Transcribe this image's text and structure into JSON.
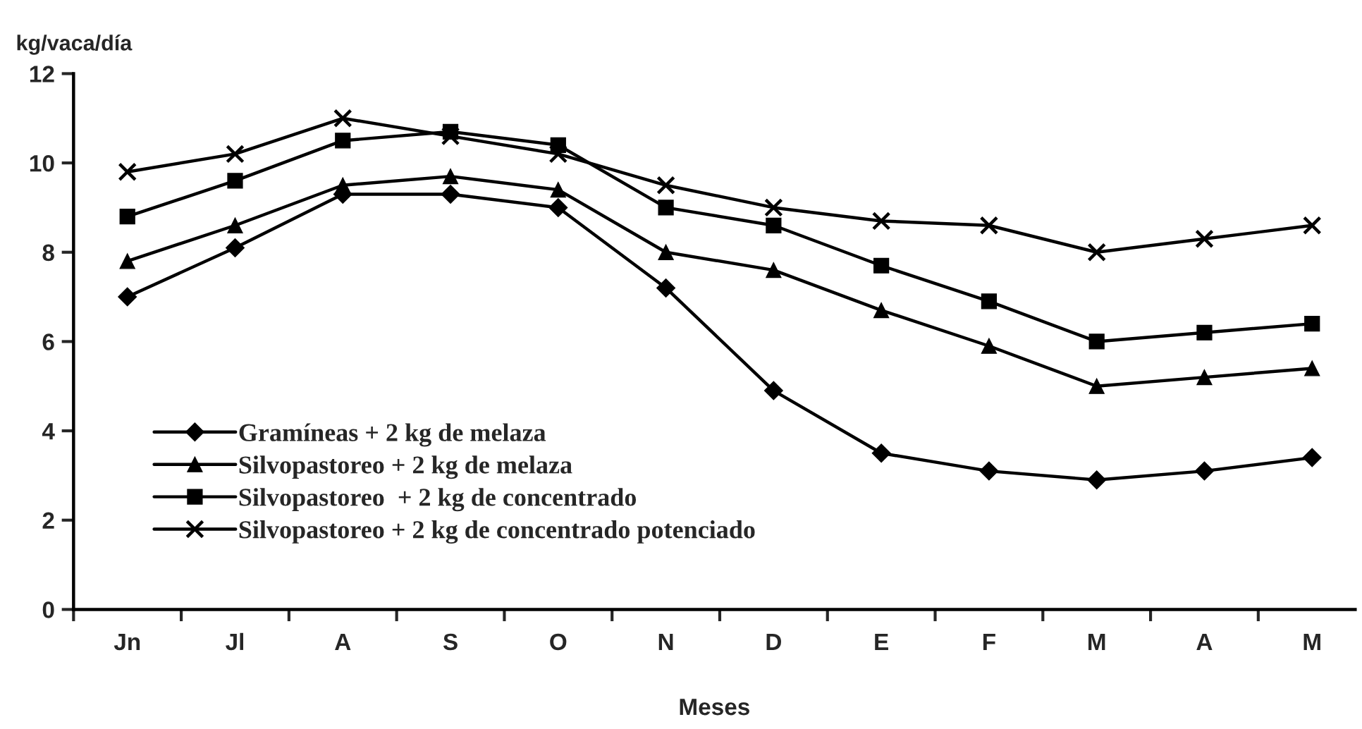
{
  "chart_data": {
    "type": "line",
    "ylabel": "kg/vaca/día",
    "xlabel": "Meses",
    "categories": [
      "Jn",
      "Jl",
      "A",
      "S",
      "O",
      "N",
      "D",
      "E",
      "F",
      "M",
      "A",
      "M"
    ],
    "series": [
      {
        "name": "Gramíneas + 2 kg de melaza",
        "color": "#000000",
        "marker": "diamond",
        "values": [
          7.0,
          8.1,
          9.3,
          9.3,
          9.0,
          7.2,
          4.9,
          3.5,
          3.1,
          2.9,
          3.1,
          3.4
        ]
      },
      {
        "name": "Silvopastoreo + 2 kg de melaza",
        "color": "#000000",
        "marker": "triangle",
        "values": [
          7.8,
          8.6,
          9.5,
          9.7,
          9.4,
          8.0,
          7.6,
          6.7,
          5.9,
          5.0,
          5.2,
          5.4
        ]
      },
      {
        "name": "Silvopastoreo  + 2 kg de concentrado",
        "color": "#000000",
        "marker": "square",
        "values": [
          8.8,
          9.6,
          10.5,
          10.7,
          10.4,
          9.0,
          8.6,
          7.7,
          6.9,
          6.0,
          6.2,
          6.4
        ]
      },
      {
        "name": "Silvopastoreo + 2 kg de concentrado potenciado",
        "color": "#000000",
        "marker": "cross",
        "values": [
          9.8,
          10.2,
          11.0,
          10.6,
          10.2,
          9.5,
          9.0,
          8.7,
          8.6,
          8.0,
          8.3,
          8.6
        ]
      }
    ],
    "ylim": [
      0,
      12
    ],
    "yticks": [
      0,
      2,
      4,
      6,
      8,
      10,
      12
    ],
    "grid": false,
    "legend": "bottom left",
    "line_style": "solid"
  }
}
